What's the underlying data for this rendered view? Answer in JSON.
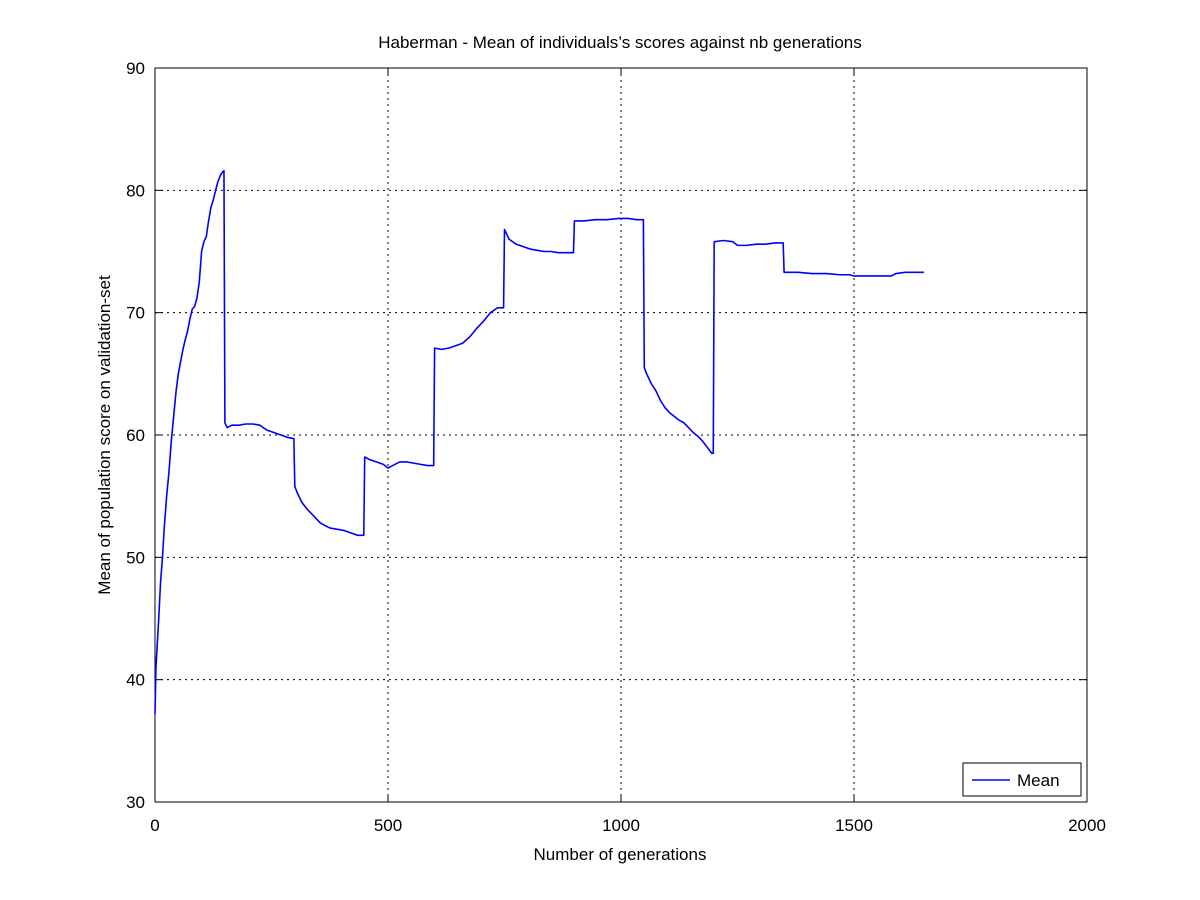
{
  "chart_data": {
    "type": "line",
    "title": "Haberman - Mean of individuals’s scores against nb generations",
    "xlabel": "Number of generations",
    "ylabel": "Mean of population score on validation-set",
    "xlim": [
      0,
      2000
    ],
    "ylim": [
      30,
      90
    ],
    "xticks": [
      0,
      500,
      1000,
      1500,
      2000
    ],
    "yticks": [
      30,
      40,
      50,
      60,
      70,
      80,
      90
    ],
    "grid": true,
    "legend": {
      "position": "bottom-right",
      "entries": [
        "Mean"
      ]
    },
    "series": [
      {
        "name": "Mean",
        "color": "#0000ff",
        "points": [
          [
            0,
            37.2
          ],
          [
            2,
            41
          ],
          [
            5,
            43
          ],
          [
            8,
            45
          ],
          [
            12,
            48
          ],
          [
            16,
            50
          ],
          [
            20,
            52.5
          ],
          [
            25,
            55
          ],
          [
            30,
            57
          ],
          [
            35,
            59.5
          ],
          [
            40,
            61.5
          ],
          [
            45,
            63.5
          ],
          [
            50,
            65
          ],
          [
            55,
            66
          ],
          [
            60,
            67
          ],
          [
            65,
            67.8
          ],
          [
            70,
            68.5
          ],
          [
            75,
            69.5
          ],
          [
            80,
            70.3
          ],
          [
            85,
            70.5
          ],
          [
            90,
            71.2
          ],
          [
            95,
            72.5
          ],
          [
            100,
            75
          ],
          [
            105,
            75.8
          ],
          [
            110,
            76.2
          ],
          [
            115,
            77.5
          ],
          [
            120,
            78.6
          ],
          [
            125,
            79.2
          ],
          [
            130,
            80
          ],
          [
            135,
            80.7
          ],
          [
            140,
            81.2
          ],
          [
            145,
            81.5
          ],
          [
            148,
            81.6
          ],
          [
            150,
            61
          ],
          [
            155,
            60.6
          ],
          [
            165,
            60.8
          ],
          [
            180,
            60.8
          ],
          [
            195,
            60.9
          ],
          [
            210,
            60.9
          ],
          [
            225,
            60.8
          ],
          [
            240,
            60.4
          ],
          [
            255,
            60.2
          ],
          [
            270,
            60
          ],
          [
            285,
            59.8
          ],
          [
            298,
            59.7
          ],
          [
            300,
            55.8
          ],
          [
            305,
            55.3
          ],
          [
            315,
            54.5
          ],
          [
            325,
            54
          ],
          [
            335,
            53.6
          ],
          [
            345,
            53.2
          ],
          [
            355,
            52.8
          ],
          [
            365,
            52.6
          ],
          [
            375,
            52.4
          ],
          [
            390,
            52.3
          ],
          [
            405,
            52.2
          ],
          [
            420,
            52
          ],
          [
            435,
            51.8
          ],
          [
            448,
            51.8
          ],
          [
            450,
            58.2
          ],
          [
            460,
            58
          ],
          [
            475,
            57.8
          ],
          [
            490,
            57.6
          ],
          [
            500,
            57.3
          ],
          [
            510,
            57.5
          ],
          [
            525,
            57.8
          ],
          [
            540,
            57.8
          ],
          [
            555,
            57.7
          ],
          [
            570,
            57.6
          ],
          [
            585,
            57.5
          ],
          [
            598,
            57.5
          ],
          [
            600,
            67.1
          ],
          [
            615,
            67
          ],
          [
            630,
            67.1
          ],
          [
            645,
            67.3
          ],
          [
            660,
            67.5
          ],
          [
            675,
            68
          ],
          [
            690,
            68.7
          ],
          [
            705,
            69.3
          ],
          [
            720,
            70
          ],
          [
            735,
            70.4
          ],
          [
            748,
            70.4
          ],
          [
            750,
            76.8
          ],
          [
            760,
            76
          ],
          [
            775,
            75.6
          ],
          [
            790,
            75.4
          ],
          [
            805,
            75.2
          ],
          [
            820,
            75.1
          ],
          [
            835,
            75
          ],
          [
            850,
            75
          ],
          [
            865,
            74.9
          ],
          [
            880,
            74.9
          ],
          [
            898,
            74.9
          ],
          [
            900,
            77.5
          ],
          [
            920,
            77.5
          ],
          [
            945,
            77.6
          ],
          [
            970,
            77.6
          ],
          [
            995,
            77.7
          ],
          [
            1015,
            77.7
          ],
          [
            1035,
            77.6
          ],
          [
            1048,
            77.6
          ],
          [
            1050,
            65.5
          ],
          [
            1055,
            65
          ],
          [
            1065,
            64.2
          ],
          [
            1075,
            63.6
          ],
          [
            1085,
            62.8
          ],
          [
            1095,
            62.2
          ],
          [
            1105,
            61.8
          ],
          [
            1115,
            61.5
          ],
          [
            1125,
            61.2
          ],
          [
            1135,
            61
          ],
          [
            1145,
            60.6
          ],
          [
            1155,
            60.2
          ],
          [
            1165,
            59.9
          ],
          [
            1175,
            59.5
          ],
          [
            1185,
            59
          ],
          [
            1195,
            58.5
          ],
          [
            1198,
            58.5
          ],
          [
            1200,
            75.8
          ],
          [
            1220,
            75.9
          ],
          [
            1240,
            75.8
          ],
          [
            1250,
            75.5
          ],
          [
            1270,
            75.5
          ],
          [
            1290,
            75.6
          ],
          [
            1310,
            75.6
          ],
          [
            1330,
            75.7
          ],
          [
            1348,
            75.7
          ],
          [
            1350,
            73.3
          ],
          [
            1380,
            73.3
          ],
          [
            1410,
            73.2
          ],
          [
            1440,
            73.2
          ],
          [
            1470,
            73.1
          ],
          [
            1490,
            73.1
          ],
          [
            1500,
            73
          ],
          [
            1530,
            73
          ],
          [
            1560,
            73
          ],
          [
            1580,
            73
          ],
          [
            1590,
            73.2
          ],
          [
            1610,
            73.3
          ],
          [
            1630,
            73.3
          ],
          [
            1650,
            73.3
          ]
        ]
      }
    ]
  }
}
